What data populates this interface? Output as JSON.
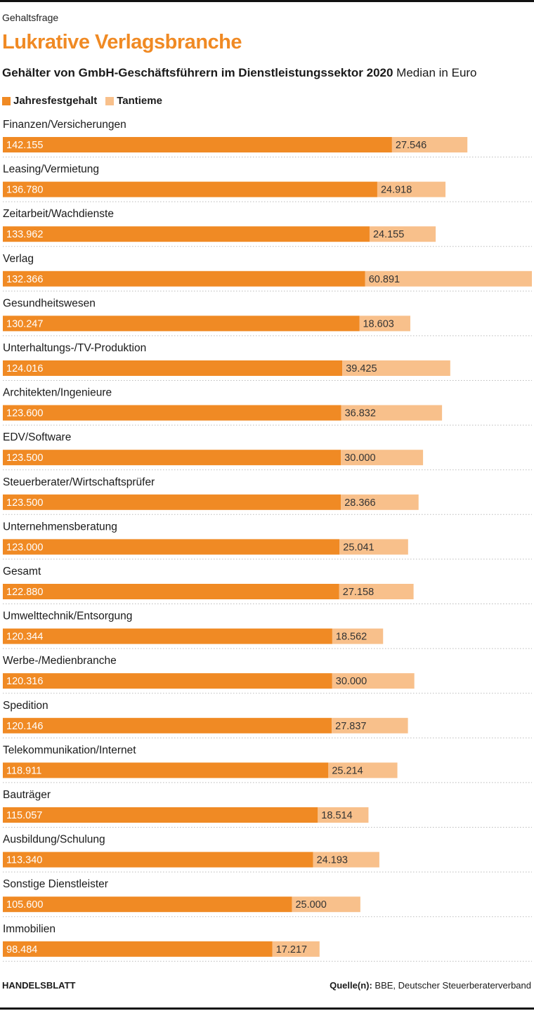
{
  "kicker": "Gehaltsfrage",
  "headline": "Lukrative Verlagsbranche",
  "subtitle_bold": "Gehälter von GmbH-Geschäftsführern im Dienstleistungssektor 2020",
  "subtitle_unit": "Median in Euro",
  "colors": {
    "accent": "#f08a24",
    "fixed": "#f08a24",
    "bonus": "#f8c08b",
    "divider": "#bbbbbb"
  },
  "footer": {
    "brand": "HANDELSBLATT",
    "source_label": "Quelle(n):",
    "source_text": "BBE, Deutscher Steuerberaterverband"
  },
  "chart_data": {
    "type": "bar",
    "orientation": "horizontal",
    "stacked": true,
    "title": "Gehälter von GmbH-Geschäftsführern im Dienstleistungssektor 2020",
    "unit": "Median in Euro",
    "legend_position": "top-left",
    "categories": [
      "Finanzen/Versicherungen",
      "Leasing/Vermietung",
      "Zeitarbeit/Wachdienste",
      "Verlag",
      "Gesundheitswesen",
      "Unterhaltungs-/TV-Produktion",
      "Architekten/Ingenieure",
      "EDV/Software",
      "Steuerberater/Wirtschaftsprüfer",
      "Unternehmensberatung",
      "Gesamt",
      "Umwelttechnik/Entsorgung",
      "Werbe-/Medienbranche",
      "Spedition",
      "Telekommunikation/Internet",
      "Bauträger",
      "Ausbildung/Schulung",
      "Sonstige Dienstleister",
      "Immobilien"
    ],
    "series": [
      {
        "name": "Jahresfestgehalt",
        "values": [
          142155,
          136780,
          133962,
          132366,
          130247,
          124016,
          123600,
          123500,
          123500,
          123000,
          122880,
          120344,
          120316,
          120146,
          118911,
          115057,
          113340,
          105600,
          98484
        ],
        "labels": [
          "142.155",
          "136.780",
          "133.962",
          "132.366",
          "130.247",
          "124.016",
          "123.600",
          "123.500",
          "123.500",
          "123.000",
          "122.880",
          "120.344",
          "120.316",
          "120.146",
          "118.911",
          "115.057",
          "113.340",
          "105.600",
          "98.484"
        ]
      },
      {
        "name": "Tantieme",
        "values": [
          27546,
          24918,
          24155,
          60891,
          18603,
          39425,
          36832,
          30000,
          28366,
          25041,
          27158,
          18562,
          30000,
          27837,
          25214,
          18514,
          24193,
          25000,
          17217
        ],
        "labels": [
          "27.546",
          "24.918",
          "24.155",
          "60.891",
          "18.603",
          "39.425",
          "36.832",
          "30.000",
          "28.366",
          "25.041",
          "27.158",
          "18.562",
          "30.000",
          "27.837",
          "25.214",
          "18.514",
          "24.193",
          "25.000",
          "17.217"
        ]
      }
    ]
  }
}
